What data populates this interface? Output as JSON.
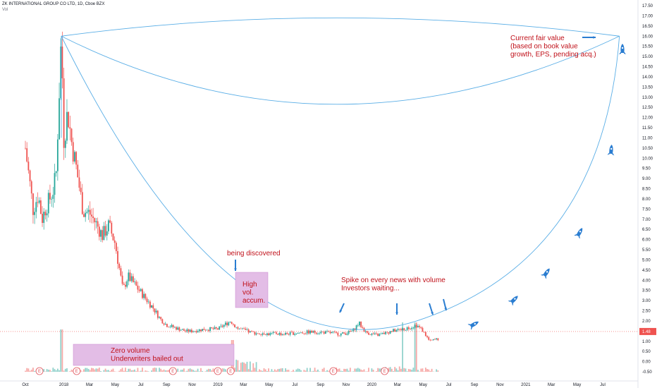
{
  "header": {
    "title": "ZK INTERNATIONAL GROUP CO LTD, 1D, Cboe BZX",
    "indicator": "Vol"
  },
  "colors": {
    "up": "#26a69a",
    "down": "#ef5350",
    "curve": "#5aaee6",
    "annotation": "#c0111a",
    "rocket": "#2a7dd1",
    "volume_box": "#e3bde6",
    "price_tag": "#ef5350"
  },
  "chart_data": {
    "type": "candlestick",
    "title": "ZK INTERNATIONAL GROUP CO LTD, 1D, Cboe BZX",
    "ylim": [
      -0.5,
      17.5
    ],
    "y_ticks": [
      "17.50",
      "17.00",
      "16.50",
      "16.00",
      "15.50",
      "15.00",
      "14.50",
      "14.00",
      "13.50",
      "13.00",
      "12.50",
      "12.00",
      "11.50",
      "11.00",
      "10.50",
      "10.00",
      "9.50",
      "9.00",
      "8.50",
      "8.00",
      "7.50",
      "7.00",
      "6.50",
      "6.00",
      "5.50",
      "5.00",
      "4.50",
      "4.00",
      "3.50",
      "3.00",
      "2.50",
      "2.00",
      "1.50",
      "1.00",
      "0.50",
      "0.00",
      "-0.50"
    ],
    "x_ticks": [
      "Oct",
      "2018",
      "Mar",
      "May",
      "Jul",
      "Sep",
      "Nov",
      "2019",
      "Mar",
      "May",
      "Jul",
      "Sep",
      "Nov",
      "2020",
      "Mar",
      "May",
      "Jul",
      "Sep",
      "Nov",
      "2021",
      "Mar",
      "May",
      "Jul"
    ],
    "last_price": "1.48",
    "price_path_months": [
      0,
      0.3,
      0.6,
      1.0,
      1.3,
      1.6,
      1.9,
      2.2,
      2.4,
      2.8,
      3.0,
      3.3,
      3.6,
      4.0,
      4.5,
      5.0,
      5.5,
      6.0,
      6.5,
      7.0,
      7.6,
      8.0,
      8.5,
      9.0,
      9.5,
      10.0,
      10.5,
      11.0,
      11.5,
      12.0,
      12.5,
      13.0,
      13.5,
      14.0,
      15.0,
      16.0,
      16.5,
      17.0,
      17.5,
      18.0,
      18.5,
      19.0,
      19.5,
      20.0,
      21.0,
      22.0,
      23.0,
      24.0,
      24.5,
      25.0,
      25.5,
      26.0,
      26.5,
      27.0,
      27.5,
      28.0,
      28.5,
      29.0,
      29.5,
      30.0,
      30.5,
      31.0,
      31.5,
      32.0
    ],
    "price_path_values": [
      10.5,
      9.0,
      7.5,
      8.2,
      7.0,
      7.6,
      8.0,
      8.5,
      9.3,
      16.0,
      11.0,
      12.3,
      10.8,
      9.4,
      7.4,
      7.3,
      6.8,
      6.2,
      6.7,
      5.8,
      3.5,
      4.2,
      3.8,
      3.4,
      3.0,
      2.6,
      2.1,
      1.8,
      1.7,
      1.6,
      1.5,
      1.5,
      1.55,
      1.6,
      1.6,
      2.0,
      1.65,
      1.55,
      1.45,
      1.4,
      1.4,
      1.35,
      1.4,
      1.35,
      1.4,
      1.45,
      1.45,
      1.4,
      1.35,
      1.4,
      1.5,
      1.9,
      1.45,
      1.35,
      1.3,
      1.4,
      1.5,
      1.55,
      1.6,
      1.7,
      1.8,
      1.5,
      1.0,
      1.1
    ]
  },
  "annotations": {
    "fair_value": [
      "Current fair value",
      "(based on book value",
      "growth, EPS, pending acq.)"
    ],
    "being_discovered": "being discovered",
    "high_vol": [
      "High",
      "vol.",
      "accum."
    ],
    "spike": [
      "Spike on every news with volume",
      "Investors waiting..."
    ],
    "zero_volume": [
      "Zero volume",
      "Underwriters bailed out"
    ]
  },
  "earnings_badge": "E"
}
